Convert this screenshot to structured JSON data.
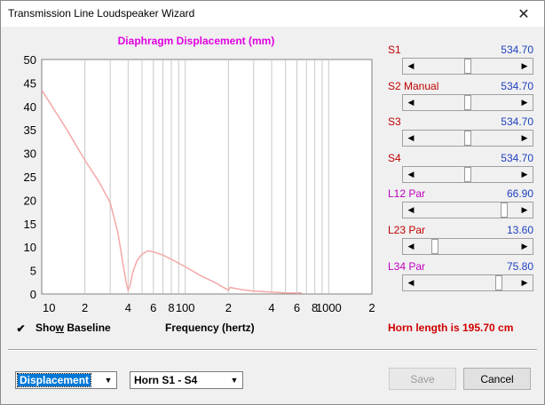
{
  "window": {
    "title": "Transmission Line Loudspeaker Wizard"
  },
  "chart_data": {
    "type": "line",
    "title": "Diaphragm Displacement (mm)",
    "xlabel": "Frequency (hertz)",
    "ylabel": "",
    "x_scale": "log",
    "xlim": [
      10,
      2000
    ],
    "ylim": [
      0,
      50
    ],
    "y_ticks": [
      0,
      5,
      10,
      15,
      20,
      25,
      30,
      35,
      40,
      45,
      50
    ],
    "x_tick_labels": [
      {
        "value": 10,
        "label": "10"
      },
      {
        "value": 20,
        "label": "2"
      },
      {
        "value": 40,
        "label": "4"
      },
      {
        "value": 60,
        "label": "6"
      },
      {
        "value": 80,
        "label": "8"
      },
      {
        "value": 100,
        "label": "100"
      },
      {
        "value": 200,
        "label": "2"
      },
      {
        "value": 400,
        "label": "4"
      },
      {
        "value": 600,
        "label": "6"
      },
      {
        "value": 800,
        "label": "8"
      },
      {
        "value": 1000,
        "label": "1000"
      },
      {
        "value": 2000,
        "label": "2"
      }
    ],
    "grid": true,
    "line_color": "#f4a8a8",
    "series": [
      {
        "values_x": [
          10,
          15,
          20,
          25,
          30,
          34,
          37,
          39,
          40,
          41,
          43,
          46,
          50,
          55,
          60,
          70,
          80,
          100,
          130,
          160,
          200,
          205,
          250,
          300,
          400,
          500,
          650
        ],
        "values_y": [
          43.5,
          35,
          28.5,
          24,
          19.5,
          13,
          6,
          2,
          0.8,
          1.5,
          4.5,
          7,
          8.5,
          9.2,
          9,
          8.3,
          7.4,
          5.8,
          3.8,
          2.5,
          0.8,
          1.4,
          0.9,
          0.6,
          0.4,
          0.25,
          0.2
        ]
      }
    ]
  },
  "sliders": [
    {
      "label": "S1",
      "value": "534.70",
      "color": "#c00000",
      "position": 0.5
    },
    {
      "label": "S2  Manual",
      "value": "534.70",
      "color": "#c00000",
      "position": 0.5
    },
    {
      "label": "S3",
      "value": "534.70",
      "color": "#c00000",
      "position": 0.5
    },
    {
      "label": "S4",
      "value": "534.70",
      "color": "#c00000",
      "position": 0.5
    },
    {
      "label": "L12  Par",
      "value": "66.90",
      "color": "#c000c0",
      "position": 0.9
    },
    {
      "label": "L23  Par",
      "value": "13.60",
      "color": "#c00000",
      "position": 0.14
    },
    {
      "label": "L34  Par",
      "value": "75.80",
      "color": "#c000c0",
      "position": 0.84
    }
  ],
  "controls": {
    "show_baseline": {
      "label_pre": "Sho",
      "label_accel": "w",
      "label_post": " Baseline",
      "checked": true,
      "check_glyph": "✔"
    },
    "horn_length_text": "Horn length is 195.70 cm",
    "mode_select": "Displacement",
    "horn_select": "Horn S1 - S4",
    "save_label": "Save",
    "cancel_label": "Cancel",
    "close_glyph": "✕",
    "arrow_left": "◀",
    "arrow_right": "▶",
    "arrow_down": "▼"
  }
}
